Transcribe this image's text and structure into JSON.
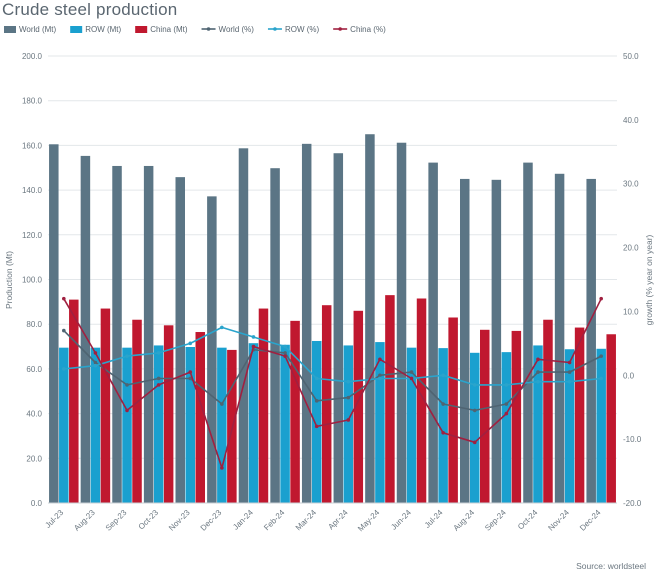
{
  "chart_data": {
    "type": "bar",
    "title": "Crude steel production",
    "source": "Source: worldsteel",
    "categories": [
      "Jul-23",
      "Aug-23",
      "Sep-23",
      "Oct-23",
      "Nov-23",
      "Dec-23",
      "Jan-24",
      "Feb-24",
      "Mar-24",
      "Apr-24",
      "May-24",
      "Jun-24",
      "Jul-24",
      "Aug-24",
      "Sep-24",
      "Oct-24",
      "Nov-24",
      "Dec-24"
    ],
    "ylabel": "Production (Mt)",
    "ylabel_right": "growth (% year on year)",
    "ylim": [
      0,
      200
    ],
    "ylim_right": [
      -20,
      50
    ],
    "yticks": [
      "0.0",
      "20.0",
      "40.0",
      "60.0",
      "80.0",
      "100.0",
      "120.0",
      "140.0",
      "160.0",
      "180.0",
      "200.0"
    ],
    "yticks_right": [
      "-20.0",
      "-10.0",
      "0.0",
      "10.0",
      "20.0",
      "30.0",
      "40.0",
      "50.0"
    ],
    "colors": {
      "world_bar": "#5b7585",
      "row_bar": "#1aa0cf",
      "china_bar": "#c0182f",
      "world_line": "#4f6472",
      "row_line": "#2aa4cc",
      "china_line": "#a02040"
    },
    "bar_series": [
      {
        "name": "World (Mt)",
        "values": [
          160.5,
          155.3,
          150.8,
          150.8,
          145.8,
          137.2,
          158.7,
          149.8,
          160.7,
          156.5,
          165.0,
          161.2,
          152.3,
          145.0,
          144.6,
          152.3,
          147.3,
          145.0
        ]
      },
      {
        "name": "ROW (Mt)",
        "values": [
          69.5,
          69.5,
          69.5,
          70.5,
          69.8,
          69.5,
          71.5,
          70.8,
          72.5,
          70.5,
          72.0,
          69.5,
          69.3,
          67.2,
          67.5,
          70.5,
          68.8,
          69.0
        ]
      },
      {
        "name": "China (Mt)",
        "values": [
          91.0,
          87.0,
          82.0,
          79.5,
          76.5,
          68.5,
          87.0,
          81.5,
          88.5,
          86.0,
          93.0,
          91.5,
          83.0,
          77.5,
          77.0,
          82.0,
          78.5,
          75.5
        ]
      }
    ],
    "line_series": [
      {
        "name": "World (%)",
        "values": [
          7.0,
          2.0,
          -1.5,
          -0.5,
          -0.5,
          -4.5,
          4.0,
          3.5,
          -4.0,
          -3.5,
          0.0,
          0.5,
          -4.5,
          -5.5,
          -4.5,
          0.5,
          0.5,
          3.0
        ]
      },
      {
        "name": "ROW (%)",
        "values": [
          1.0,
          1.5,
          3.0,
          3.5,
          5.0,
          7.5,
          6.0,
          4.5,
          -0.5,
          -1.0,
          -0.5,
          -0.5,
          0.0,
          -1.5,
          -1.5,
          -1.0,
          -1.0,
          -0.5
        ]
      },
      {
        "name": "China (%)",
        "values": [
          12.0,
          3.5,
          -5.5,
          -1.5,
          0.5,
          -14.5,
          4.5,
          3.0,
          -8.0,
          -7.0,
          2.5,
          -0.5,
          -9.0,
          -10.5,
          -6.0,
          2.5,
          2.0,
          12.0
        ]
      }
    ]
  }
}
